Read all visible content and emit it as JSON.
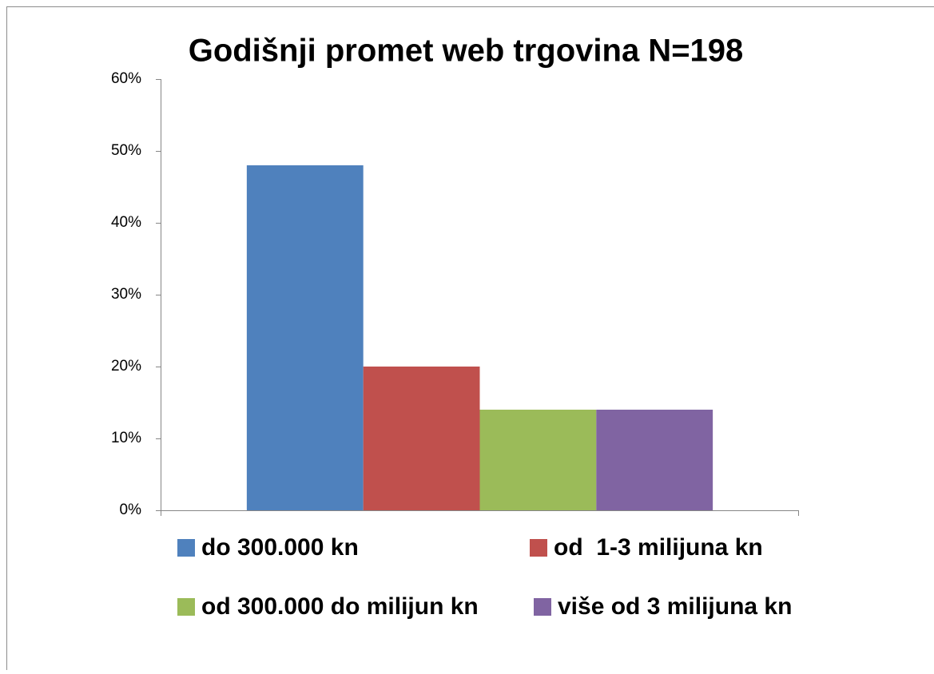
{
  "chart_data": {
    "type": "bar",
    "title": "Godišnji promet web trgovina N=198",
    "categories": [
      null
    ],
    "series": [
      {
        "name": "do 300.000 kn",
        "color": "#4f81bd",
        "values": [
          48
        ]
      },
      {
        "name": "od  1-3 milijuna kn",
        "color": "#c0504d",
        "values": [
          20
        ]
      },
      {
        "name": "od 300.000 do milijun kn",
        "color": "#9bbb59",
        "values": [
          14
        ]
      },
      {
        "name": "više od 3 milijuna kn",
        "color": "#8064a2",
        "values": [
          14
        ]
      }
    ],
    "ylim": [
      0,
      60
    ],
    "yticks": [
      {
        "value": 0,
        "label": "0%"
      },
      {
        "value": 10,
        "label": "10%"
      },
      {
        "value": 20,
        "label": "20%"
      },
      {
        "value": 30,
        "label": "30%"
      },
      {
        "value": 40,
        "label": "40%"
      },
      {
        "value": 50,
        "label": "50%"
      },
      {
        "value": 60,
        "label": "60%"
      }
    ],
    "grid": false,
    "legend": "bottom"
  }
}
